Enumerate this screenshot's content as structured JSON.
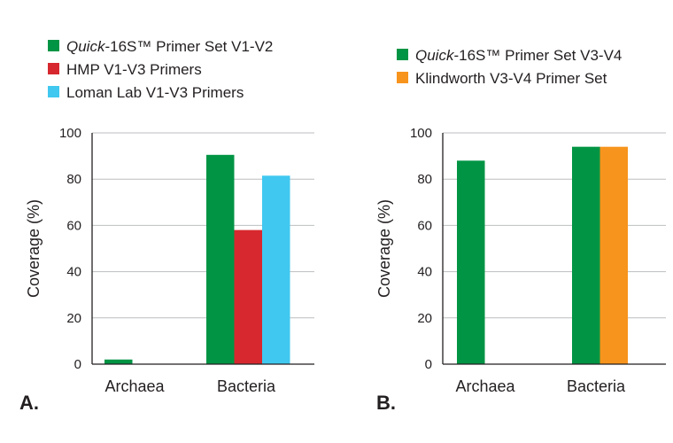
{
  "chart_data": [
    {
      "type": "bar",
      "panel_label": "A.",
      "ylabel": "Coverage (%)",
      "ylim": [
        0,
        100
      ],
      "yticks": [
        "0",
        "20",
        "40",
        "60",
        "80",
        "100"
      ],
      "grid": true,
      "legend_position": "top",
      "categories": [
        "Archaea",
        "Bacteria"
      ],
      "series": [
        {
          "name_italic": "Quick",
          "name": "-16S™ Primer Set V1-V2",
          "color": "#009444",
          "values": [
            2,
            90.5
          ]
        },
        {
          "name": "HMP V1-V3 Primers",
          "color": "#d7282f",
          "values": [
            0,
            58
          ]
        },
        {
          "name": "Loman Lab V1-V3 Primers",
          "color": "#40c8f0",
          "values": [
            0,
            81.5
          ]
        }
      ]
    },
    {
      "type": "bar",
      "panel_label": "B.",
      "ylabel": "Coverage (%)",
      "ylim": [
        0,
        100
      ],
      "yticks": [
        "0",
        "20",
        "40",
        "60",
        "80",
        "100"
      ],
      "grid": true,
      "legend_position": "top",
      "categories": [
        "Archaea",
        "Bacteria"
      ],
      "series": [
        {
          "name_italic": "Quick",
          "name": "-16S™ Primer Set V3-V4",
          "color": "#009444",
          "values": [
            88,
            94
          ]
        },
        {
          "name": "Klindworth V3-V4 Primer Set",
          "color": "#f7941d",
          "values": [
            0,
            94
          ]
        }
      ]
    }
  ]
}
